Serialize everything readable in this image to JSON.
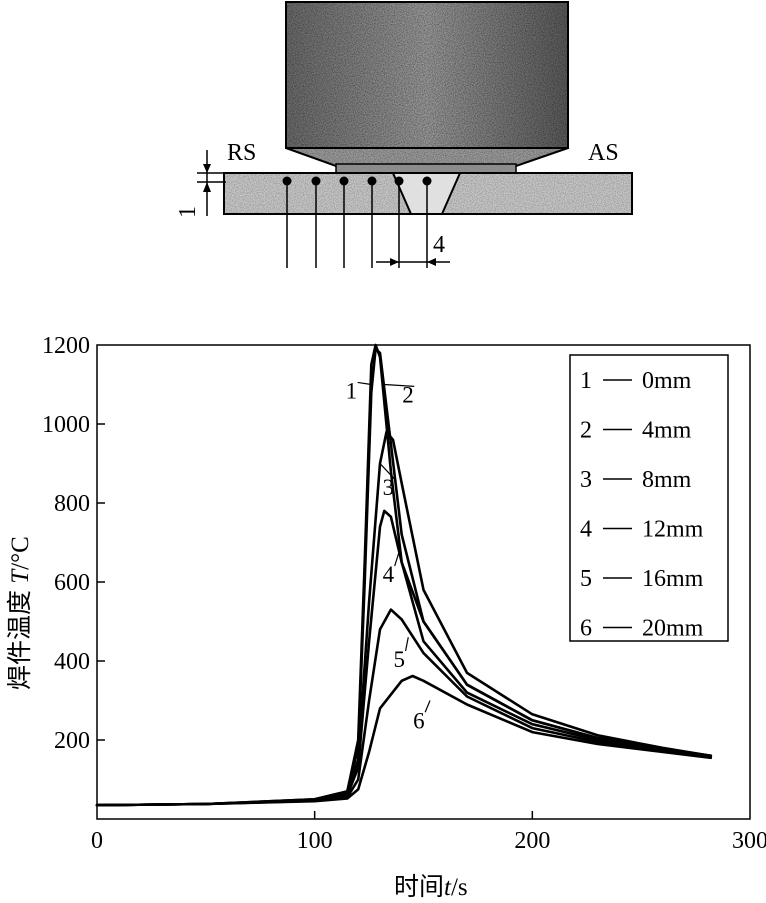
{
  "diagram": {
    "left_label": "RS",
    "right_label": "AS",
    "depth_label": "1",
    "spacing_label": "4"
  },
  "chart_data": {
    "type": "line",
    "title": "",
    "xlabel_prefix": "时间",
    "xlabel_var": "t",
    "xlabel_unit": "/s",
    "ylabel_prefix": "焊件温度 ",
    "ylabel_var": "T",
    "ylabel_unit": "/°C",
    "xlim": [
      0,
      300
    ],
    "ylim": [
      0,
      1200
    ],
    "xticks": [
      "0",
      "100",
      "200",
      "300"
    ],
    "yticks": [
      "200",
      "400",
      "600",
      "800",
      "1000",
      "1200"
    ],
    "legend_position": "top-right",
    "legend": [
      {
        "id": "1",
        "text": "0mm"
      },
      {
        "id": "2",
        "text": "4mm"
      },
      {
        "id": "3",
        "text": "8mm"
      },
      {
        "id": "4",
        "text": "12mm"
      },
      {
        "id": "5",
        "text": "16mm"
      },
      {
        "id": "6",
        "text": "20mm"
      }
    ],
    "series": [
      {
        "name": "1",
        "x": [
          0,
          50,
          100,
          115,
          120,
          123,
          126,
          128,
          130,
          135,
          140,
          150,
          170,
          200,
          230,
          260,
          282
        ],
        "y": [
          35,
          38,
          50,
          70,
          200,
          650,
          1150,
          1200,
          1170,
          880,
          650,
          450,
          320,
          240,
          200,
          175,
          160
        ]
      },
      {
        "name": "2",
        "x": [
          0,
          50,
          100,
          115,
          120,
          123,
          126,
          128,
          130,
          135,
          140,
          150,
          170,
          200,
          230,
          260,
          282
        ],
        "y": [
          35,
          38,
          50,
          70,
          180,
          600,
          1080,
          1190,
          1180,
          950,
          720,
          500,
          340,
          250,
          205,
          178,
          160
        ]
      },
      {
        "name": "3",
        "x": [
          0,
          50,
          100,
          115,
          120,
          125,
          130,
          133,
          136,
          140,
          150,
          170,
          200,
          230,
          260,
          282
        ],
        "y": [
          35,
          38,
          48,
          65,
          150,
          550,
          900,
          980,
          960,
          850,
          580,
          370,
          265,
          212,
          180,
          160
        ]
      },
      {
        "name": "4",
        "x": [
          0,
          50,
          100,
          115,
          120,
          125,
          130,
          132,
          135,
          140,
          150,
          170,
          200,
          230,
          260,
          282
        ],
        "y": [
          35,
          38,
          47,
          60,
          130,
          450,
          740,
          780,
          765,
          650,
          500,
          340,
          250,
          205,
          178,
          160
        ]
      },
      {
        "name": "5",
        "x": [
          0,
          50,
          100,
          115,
          120,
          125,
          130,
          135,
          140,
          150,
          170,
          200,
          230,
          260,
          282
        ],
        "y": [
          35,
          38,
          46,
          55,
          100,
          300,
          480,
          530,
          505,
          420,
          310,
          230,
          195,
          172,
          158
        ]
      },
      {
        "name": "6",
        "x": [
          0,
          50,
          100,
          115,
          120,
          125,
          130,
          140,
          145,
          150,
          170,
          200,
          230,
          260,
          282
        ],
        "y": [
          35,
          38,
          45,
          52,
          75,
          170,
          280,
          350,
          362,
          350,
          290,
          220,
          190,
          170,
          155
        ]
      }
    ],
    "curve_labels": [
      {
        "text": "1",
        "x": 117,
        "y": 1085,
        "tx": 126,
        "ty": 1100
      },
      {
        "text": "2",
        "x": 143,
        "y": 1075,
        "tx": 132,
        "ty": 1100
      },
      {
        "text": "3",
        "x": 134,
        "y": 840,
        "tx": 130,
        "ty": 900
      },
      {
        "text": "4",
        "x": 134,
        "y": 620,
        "tx": 139,
        "ty": 680
      },
      {
        "text": "5",
        "x": 139,
        "y": 405,
        "tx": 143,
        "ty": 460
      },
      {
        "text": "6",
        "x": 148,
        "y": 250,
        "tx": 153,
        "ty": 300
      }
    ]
  }
}
